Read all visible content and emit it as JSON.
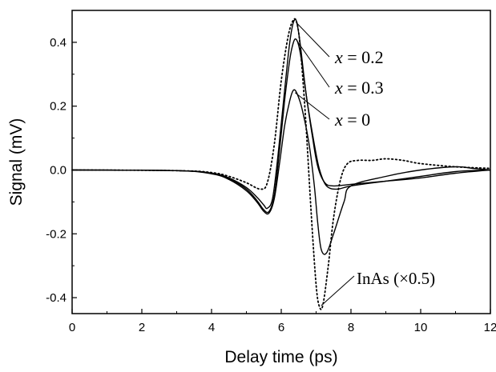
{
  "chart_data": {
    "type": "line",
    "xlabel": "Delay time (ps)",
    "ylabel": "Signal (mV)",
    "xlim": [
      0,
      12
    ],
    "ylim": [
      -0.45,
      0.5
    ],
    "xticks": [
      "0",
      "2",
      "4",
      "6",
      "8",
      "10",
      "12"
    ],
    "yticks": [
      "0.4",
      "0.2",
      "0.0",
      "-0.2",
      "-0.4"
    ],
    "grid": false,
    "series": [
      {
        "name": "x = 0.2",
        "style": "solid",
        "x": [
          0,
          3.0,
          4.0,
          4.5,
          5.0,
          5.3,
          5.5,
          5.6,
          5.75,
          5.9,
          6.05,
          6.2,
          6.3,
          6.38,
          6.45,
          6.55,
          6.7,
          6.9,
          7.05,
          7.25,
          7.5,
          8.0,
          9.0,
          10.0,
          11.0,
          12.0
        ],
        "y": [
          0,
          -0.002,
          -0.01,
          -0.025,
          -0.055,
          -0.085,
          -0.11,
          -0.12,
          -0.09,
          0.04,
          0.2,
          0.36,
          0.44,
          0.47,
          0.46,
          0.39,
          0.25,
          0.1,
          0.01,
          -0.04,
          -0.05,
          -0.045,
          -0.035,
          -0.025,
          -0.01,
          0.0
        ]
      },
      {
        "name": "x = 0.3",
        "style": "solid",
        "x": [
          0,
          3.0,
          4.0,
          4.5,
          5.0,
          5.3,
          5.5,
          5.65,
          5.8,
          5.95,
          6.1,
          6.25,
          6.35,
          6.42,
          6.5,
          6.6,
          6.75,
          6.95,
          7.1,
          7.3,
          7.6,
          8.0,
          9.0,
          10.0,
          11.0,
          12.0
        ],
        "y": [
          0,
          -0.002,
          -0.01,
          -0.027,
          -0.06,
          -0.095,
          -0.125,
          -0.13,
          -0.08,
          0.06,
          0.22,
          0.35,
          0.4,
          0.41,
          0.39,
          0.33,
          0.21,
          0.08,
          0.0,
          -0.05,
          -0.06,
          -0.05,
          -0.035,
          -0.02,
          -0.005,
          0.0
        ]
      },
      {
        "name": "x = 0",
        "style": "solid",
        "x": [
          0,
          3.0,
          4.0,
          4.5,
          5.0,
          5.3,
          5.5,
          5.65,
          5.8,
          5.95,
          6.1,
          6.25,
          6.35,
          6.45,
          6.6,
          6.8,
          6.95,
          7.05,
          7.15,
          7.3,
          7.5,
          7.8,
          8.0,
          9.0,
          10.0,
          11.0,
          11.5,
          12.0
        ],
        "y": [
          0,
          -0.002,
          -0.012,
          -0.03,
          -0.065,
          -0.1,
          -0.13,
          -0.135,
          -0.09,
          0.02,
          0.14,
          0.22,
          0.25,
          0.24,
          0.19,
          0.08,
          -0.05,
          -0.17,
          -0.25,
          -0.26,
          -0.2,
          -0.1,
          -0.05,
          -0.02,
          0.0,
          0.01,
          0.005,
          0.0
        ]
      },
      {
        "name": "InAs (×0.5)",
        "style": "dotted",
        "x": [
          0,
          3.0,
          4.0,
          4.5,
          5.0,
          5.4,
          5.6,
          5.8,
          6.0,
          6.2,
          6.35,
          6.45,
          6.55,
          6.7,
          6.85,
          7.0,
          7.1,
          7.2,
          7.35,
          7.5,
          7.7,
          7.9,
          8.2,
          8.6,
          9.0,
          9.5,
          10.0,
          11.0,
          12.0
        ],
        "y": [
          0,
          -0.002,
          -0.008,
          -0.02,
          -0.04,
          -0.06,
          -0.04,
          0.08,
          0.28,
          0.42,
          0.47,
          0.46,
          0.38,
          0.16,
          -0.12,
          -0.36,
          -0.43,
          -0.42,
          -0.3,
          -0.15,
          -0.03,
          0.02,
          0.03,
          0.03,
          0.035,
          0.03,
          0.02,
          0.01,
          0.005
        ]
      }
    ],
    "annotations": [
      {
        "var": "x",
        "text": " = 0.2"
      },
      {
        "var": "x",
        "text": " = 0.3"
      },
      {
        "var": "x",
        "text": " = 0"
      },
      {
        "var": "",
        "text": "InAs (×0.5)"
      }
    ]
  }
}
